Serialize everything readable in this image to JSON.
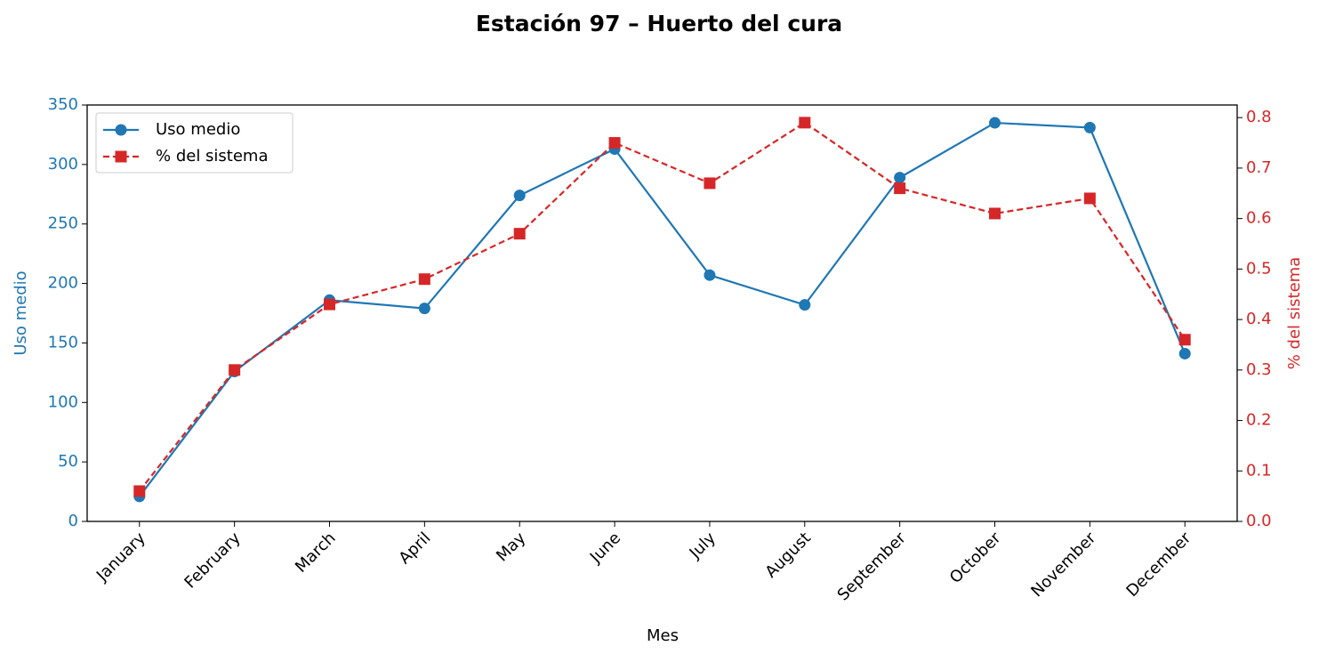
{
  "chart_data": {
    "type": "line",
    "title": "Estación 97 – Huerto del cura",
    "x_label": "Mes",
    "y_label": "Uso medio",
    "y2_label": "% del sistema",
    "categories": [
      "January",
      "February",
      "March",
      "April",
      "May",
      "June",
      "July",
      "August",
      "September",
      "October",
      "November",
      "December"
    ],
    "series": [
      {
        "name": "Uso medio",
        "color": "#1f77b4",
        "marker": "circle",
        "dash": false,
        "values": [
          21,
          126,
          186,
          179,
          274,
          313,
          207,
          182,
          289,
          335,
          331,
          141
        ]
      },
      {
        "name": "% del sistema",
        "color": "#d62728",
        "marker": "square",
        "dash": true,
        "axis": "y2",
        "values": [
          0.06,
          0.3,
          0.43,
          0.48,
          0.57,
          0.75,
          0.67,
          0.79,
          0.66,
          0.61,
          0.64,
          0.36
        ]
      }
    ],
    "ylim": [
      0,
      350
    ],
    "yticks": [
      0,
      50,
      100,
      150,
      200,
      250,
      300,
      350
    ],
    "y2lim": [
      0,
      0.825
    ],
    "y2ticks": [
      {
        "value": 0,
        "label": "0.0"
      },
      0.1,
      0.2,
      0.3,
      0.4,
      0.5,
      0.6,
      0.7,
      0.8
    ],
    "legend": "upper left",
    "grid": false
  }
}
